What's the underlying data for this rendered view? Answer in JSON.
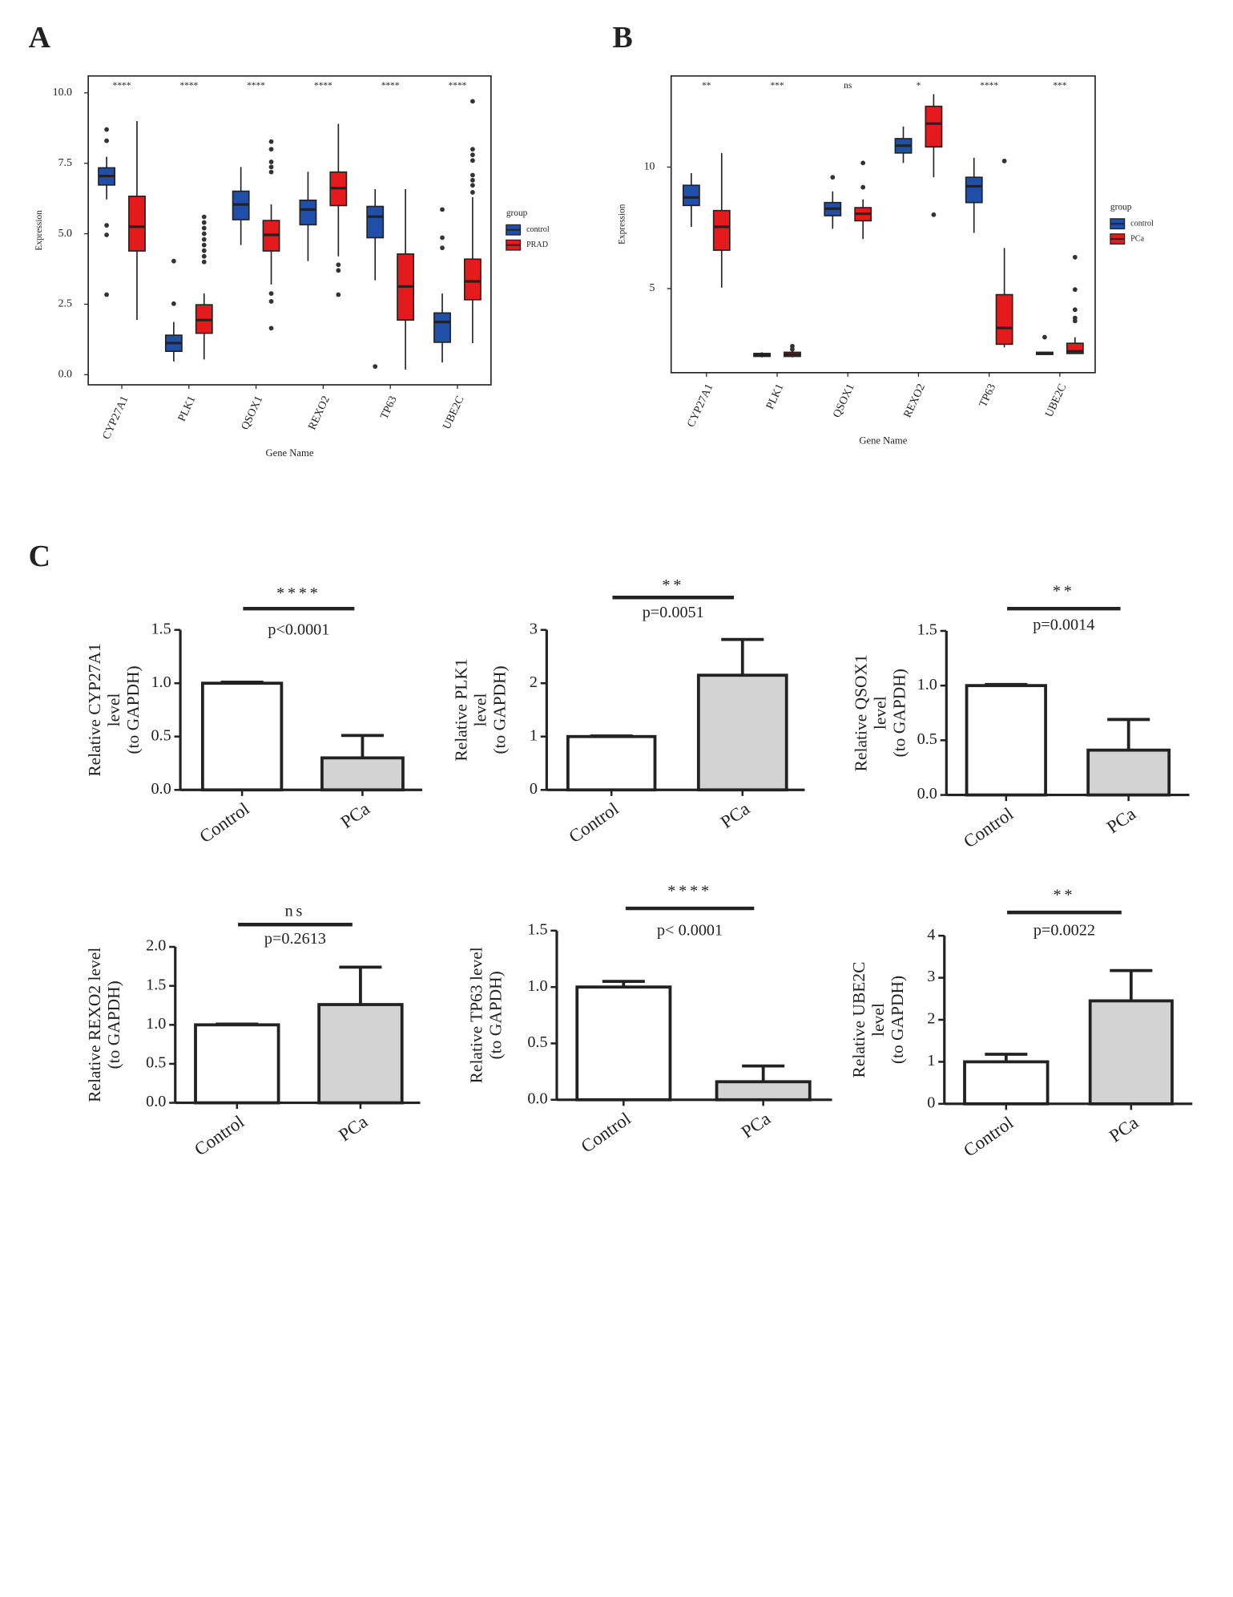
{
  "chart_data": [
    {
      "type": "box",
      "panel": "A",
      "x_label": "Gene Name",
      "y_label": "Expression",
      "legend_title": "group",
      "categories": [
        "CYP27A1",
        "PLK1",
        "QSOX1",
        "REXO2",
        "TP63",
        "UBE2C"
      ],
      "significance": [
        "****",
        "****",
        "****",
        "****",
        "****",
        "****"
      ],
      "ylim": [
        -0.36,
        10.6
      ],
      "yticks": [
        {
          "value": 0,
          "label": "0.0"
        },
        2.5,
        {
          "value": 5,
          "label": "5.0"
        },
        7.5,
        {
          "value": 10,
          "label": "10.0"
        }
      ],
      "series": [
        {
          "name": "control",
          "color": "#1f4fa8",
          "boxes": [
            {
              "min": 6.22,
              "q1": 6.73,
              "median": 7.05,
              "q3": 7.34,
              "max": 7.73,
              "outliers": [
                8.7,
                8.3,
                5.3,
                4.96,
                2.84
              ]
            },
            {
              "min": 0.47,
              "q1": 0.83,
              "median": 1.12,
              "q3": 1.4,
              "max": 1.87,
              "outliers": [
                4.03,
                2.52
              ]
            },
            {
              "min": 4.6,
              "q1": 5.5,
              "median": 6.04,
              "q3": 6.51,
              "max": 7.37,
              "outliers": []
            },
            {
              "min": 4.03,
              "q1": 5.32,
              "median": 5.86,
              "q3": 6.19,
              "max": 7.2,
              "outliers": []
            },
            {
              "min": 3.35,
              "q1": 4.86,
              "median": 5.61,
              "q3": 5.97,
              "max": 6.58,
              "outliers": [
                0.29
              ]
            },
            {
              "min": 0.43,
              "q1": 1.15,
              "median": 1.87,
              "q3": 2.19,
              "max": 2.88,
              "outliers": [
                5.86,
                4.86,
                4.5
              ]
            }
          ]
        },
        {
          "name": "PRAD",
          "color": "#e41a1c",
          "boxes": [
            {
              "min": 1.94,
              "q1": 4.39,
              "median": 5.25,
              "q3": 6.33,
              "max": 9.0,
              "outliers": []
            },
            {
              "min": 0.54,
              "q1": 1.47,
              "median": 1.94,
              "q3": 2.48,
              "max": 2.88,
              "outliers": [
                5.6,
                5.4,
                5.2,
                5.0,
                4.8,
                4.6,
                4.4,
                4.2,
                4.0
              ]
            },
            {
              "min": 3.2,
              "q1": 4.39,
              "median": 4.96,
              "q3": 5.47,
              "max": 6.04,
              "outliers": [
                8.27,
                8.0,
                7.55,
                7.37,
                7.19,
                2.88,
                2.6,
                1.65
              ]
            },
            {
              "min": 4.2,
              "q1": 6.0,
              "median": 6.62,
              "q3": 7.19,
              "max": 8.9,
              "outliers": [
                3.9,
                3.7,
                2.84
              ]
            },
            {
              "min": 0.18,
              "q1": 1.94,
              "median": 3.13,
              "q3": 4.28,
              "max": 6.58,
              "outliers": []
            },
            {
              "min": 1.12,
              "q1": 2.66,
              "median": 3.31,
              "q3": 4.1,
              "max": 6.3,
              "outliers": [
                9.7,
                8.0,
                7.8,
                7.6,
                7.08,
                6.9,
                6.72,
                6.47
              ]
            }
          ]
        }
      ]
    },
    {
      "type": "box",
      "panel": "B",
      "x_label": "Gene Name",
      "y_label": "Expression",
      "legend_title": "group",
      "categories": [
        "CYP27A1",
        "PLK1",
        "QSOX1",
        "REXO2",
        "TP63",
        "UBE2C"
      ],
      "significance": [
        "**",
        "***",
        "ns",
        "*",
        "****",
        "***"
      ],
      "ylim": [
        1.54,
        13.75
      ],
      "yticks": [
        5,
        10
      ],
      "series": [
        {
          "name": "control",
          "color": "#1f4fa8",
          "boxes": [
            {
              "min": 7.54,
              "q1": 8.42,
              "median": 8.75,
              "q3": 9.25,
              "max": 9.75,
              "outliers": []
            },
            {
              "min": 2.17,
              "q1": 2.21,
              "median": 2.27,
              "q3": 2.33,
              "max": 2.38,
              "outliers": []
            },
            {
              "min": 7.46,
              "q1": 8.0,
              "median": 8.29,
              "q3": 8.54,
              "max": 9.0,
              "outliers": [
                9.58
              ]
            },
            {
              "min": 10.17,
              "q1": 10.58,
              "median": 10.88,
              "q3": 11.17,
              "max": 11.67,
              "outliers": []
            },
            {
              "min": 7.29,
              "q1": 8.54,
              "median": 9.21,
              "q3": 9.58,
              "max": 10.38,
              "outliers": []
            },
            {
              "min": 2.29,
              "q1": 2.29,
              "median": 2.33,
              "q3": 2.38,
              "max": 2.38,
              "outliers": [
                3.0
              ]
            }
          ]
        },
        {
          "name": "PCa",
          "color": "#e41a1c",
          "boxes": [
            {
              "min": 5.04,
              "q1": 6.58,
              "median": 7.54,
              "q3": 8.21,
              "max": 10.58,
              "outliers": []
            },
            {
              "min": 2.17,
              "q1": 2.21,
              "median": 2.29,
              "q3": 2.38,
              "max": 2.42,
              "outliers": [
                2.63,
                2.5
              ]
            },
            {
              "min": 7.04,
              "q1": 7.79,
              "median": 8.08,
              "q3": 8.33,
              "max": 8.67,
              "outliers": [
                10.17,
                9.17
              ]
            },
            {
              "min": 9.58,
              "q1": 10.83,
              "median": 11.79,
              "q3": 12.5,
              "max": 13.0,
              "outliers": [
                8.04
              ]
            },
            {
              "min": 2.58,
              "q1": 2.71,
              "median": 3.38,
              "q3": 4.75,
              "max": 6.67,
              "outliers": [
                10.25
              ]
            },
            {
              "min": 2.33,
              "q1": 2.33,
              "median": 2.42,
              "q3": 2.75,
              "max": 3.0,
              "outliers": [
                6.29,
                4.96,
                4.13,
                3.79,
                3.67
              ]
            }
          ]
        }
      ]
    },
    {
      "type": "bar",
      "panel": "C",
      "y_label": [
        "Relative CYP27A1",
        "level",
        "(to GAPDH)"
      ],
      "significance": "****",
      "p_value": "p<0.0001",
      "categories": [
        "Control",
        "PCa"
      ],
      "values": [
        1.0,
        0.3
      ],
      "errors": [
        0.01,
        0.21
      ],
      "colors": [
        "#ffffff",
        "#d3d3d3"
      ],
      "ylim": [
        0,
        1.5
      ],
      "yticks": [
        {
          "value": 0,
          "label": "0.0"
        },
        0.5,
        {
          "value": 1,
          "label": "1.0"
        },
        1.5
      ]
    },
    {
      "type": "bar",
      "y_label": [
        "Relative PLK1",
        "level",
        "(to GAPDH)"
      ],
      "significance": "**",
      "p_value": "p=0.0051",
      "categories": [
        "Control",
        "PCa"
      ],
      "values": [
        1.0,
        2.15
      ],
      "errors": [
        0.01,
        0.67
      ],
      "colors": [
        "#ffffff",
        "#d3d3d3"
      ],
      "ylim": [
        0,
        3
      ],
      "yticks": [
        0,
        1,
        2,
        3
      ]
    },
    {
      "type": "bar",
      "y_label": [
        "Relative QSOX1",
        "level",
        "(to GAPDH)"
      ],
      "significance": "**",
      "p_value": "p=0.0014",
      "categories": [
        "Control",
        "PCa"
      ],
      "values": [
        1.0,
        0.41
      ],
      "errors": [
        0.01,
        0.28
      ],
      "colors": [
        "#ffffff",
        "#d3d3d3"
      ],
      "ylim": [
        0,
        1.5
      ],
      "yticks": [
        {
          "value": 0,
          "label": "0.0"
        },
        0.5,
        {
          "value": 1,
          "label": "1.0"
        },
        1.5
      ]
    },
    {
      "type": "bar",
      "y_label": [
        "Relative REXO2 level",
        "(to GAPDH)"
      ],
      "significance": "ns",
      "p_value": "p=0.2613",
      "categories": [
        "Control",
        "PCa"
      ],
      "values": [
        1.0,
        1.26
      ],
      "errors": [
        0.01,
        0.48
      ],
      "colors": [
        "#ffffff",
        "#d3d3d3"
      ],
      "ylim": [
        0,
        2
      ],
      "yticks": [
        {
          "value": 0,
          "label": "0.0"
        },
        0.5,
        {
          "value": 1,
          "label": "1.0"
        },
        1.5,
        {
          "value": 2,
          "label": "2.0"
        }
      ]
    },
    {
      "type": "bar",
      "y_label": [
        "Relative TP63 level",
        "(to GAPDH)"
      ],
      "significance": "****",
      "p_value": "p< 0.0001",
      "categories": [
        "Control",
        "PCa"
      ],
      "values": [
        1.0,
        0.16
      ],
      "errors": [
        0.05,
        0.14
      ],
      "colors": [
        "#ffffff",
        "#d3d3d3"
      ],
      "ylim": [
        0,
        1.5
      ],
      "yticks": [
        {
          "value": 0,
          "label": "0.0"
        },
        0.5,
        {
          "value": 1,
          "label": "1.0"
        },
        1.5
      ]
    },
    {
      "type": "bar",
      "y_label": [
        "Relative UBE2C",
        "level",
        "(to GAPDH)"
      ],
      "significance": "**",
      "p_value": "p=0.0022",
      "categories": [
        "Control",
        "PCa"
      ],
      "values": [
        1.0,
        2.45
      ],
      "errors": [
        0.18,
        0.72
      ],
      "colors": [
        "#ffffff",
        "#d3d3d3"
      ],
      "ylim": [
        0,
        4
      ],
      "yticks": [
        0,
        1,
        2,
        3,
        4
      ]
    }
  ]
}
